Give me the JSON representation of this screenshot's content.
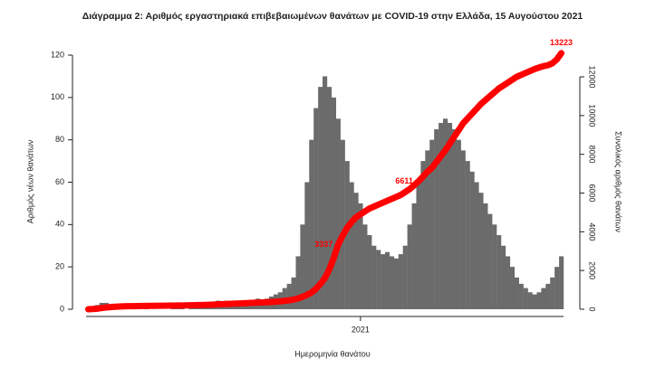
{
  "chart_data": {
    "type": "bar",
    "title": "Διάγραμμα 2: Αριθμός εργαστηριακά επιβεβαιωμένων θανάτων με COVID-19 στην Ελλάδα, 15 Αυγούστου 2021",
    "x_label": "Ημερομηνία θανάτου",
    "y_label": "Αριθμός νέων θανάτων",
    "y2_label": "Συνολικός αριθμός θανάτων",
    "categories": [
      null,
      null,
      null,
      null,
      null,
      null,
      null,
      null,
      null,
      null,
      null,
      null,
      null,
      null,
      null,
      null,
      null,
      null,
      null,
      null,
      null,
      null,
      null,
      null,
      null,
      null,
      null,
      null,
      null,
      null,
      null,
      null,
      null,
      null,
      null,
      null,
      null,
      null,
      null,
      null,
      null,
      null,
      null,
      null,
      null,
      null,
      null,
      null,
      null,
      null,
      null,
      null,
      null,
      null,
      null,
      null,
      null,
      null,
      null,
      null,
      null,
      "2021",
      null,
      null,
      null,
      null,
      null,
      null,
      null,
      null,
      null,
      null,
      null,
      null,
      null,
      null,
      null,
      null,
      null,
      null,
      null,
      null,
      null,
      null,
      null,
      null,
      null,
      null,
      null,
      null,
      null,
      null,
      null,
      null,
      null,
      null,
      null,
      null,
      null,
      null,
      null,
      null,
      null,
      null,
      null,
      null,
      null
    ],
    "series": [
      {
        "type": "bar",
        "color": "#6b6b6b",
        "values": [
          0,
          1,
          2,
          3,
          3,
          2,
          2,
          1,
          1,
          1,
          1,
          1,
          0,
          1,
          0,
          0,
          0,
          0,
          0,
          1,
          1,
          1,
          0,
          1,
          1,
          2,
          3,
          2,
          3,
          4,
          3,
          4,
          3,
          2,
          3,
          3,
          4,
          3,
          5,
          4,
          5,
          6,
          7,
          8,
          10,
          12,
          15,
          25,
          40,
          60,
          80,
          95,
          105,
          110,
          105,
          100,
          90,
          80,
          70,
          60,
          55,
          50,
          40,
          35,
          30,
          28,
          26,
          27,
          25,
          24,
          26,
          30,
          40,
          50,
          60,
          70,
          75,
          80,
          85,
          88,
          90,
          88,
          85,
          80,
          75,
          70,
          65,
          60,
          55,
          50,
          45,
          40,
          35,
          30,
          25,
          20,
          15,
          12,
          10,
          8,
          7,
          8,
          10,
          12,
          15,
          20,
          25
        ]
      },
      {
        "type": "line",
        "axis": "y2",
        "color": "#ff0000",
        "values": [
          0,
          10,
          30,
          60,
          90,
          110,
          130,
          140,
          150,
          155,
          160,
          165,
          170,
          172,
          175,
          178,
          180,
          182,
          185,
          188,
          190,
          195,
          200,
          205,
          210,
          215,
          220,
          230,
          240,
          250,
          260,
          270,
          280,
          290,
          300,
          310,
          320,
          330,
          340,
          350,
          360,
          375,
          390,
          410,
          430,
          460,
          500,
          560,
          640,
          740,
          860,
          1050,
          1300,
          1600,
          2050,
          2650,
          3337,
          3800,
          4200,
          4500,
          4750,
          4900,
          5050,
          5200,
          5300,
          5400,
          5500,
          5600,
          5700,
          5800,
          5900,
          6050,
          6200,
          6400,
          6611,
          6850,
          7100,
          7300,
          7600,
          7900,
          8200,
          8550,
          8900,
          9250,
          9600,
          9850,
          10100,
          10350,
          10600,
          10800,
          11000,
          11200,
          11400,
          11550,
          11700,
          11850,
          12000,
          12100,
          12200,
          12300,
          12400,
          12480,
          12550,
          12600,
          12700,
          12900,
          13223
        ],
        "value_labels": [
          null,
          null,
          null,
          null,
          null,
          null,
          null,
          null,
          null,
          null,
          null,
          null,
          null,
          null,
          null,
          null,
          null,
          null,
          null,
          null,
          null,
          null,
          null,
          null,
          null,
          null,
          null,
          null,
          null,
          null,
          null,
          null,
          null,
          null,
          null,
          null,
          null,
          null,
          null,
          null,
          null,
          null,
          null,
          null,
          null,
          null,
          null,
          null,
          null,
          null,
          null,
          null,
          null,
          null,
          null,
          null,
          "3337",
          null,
          null,
          null,
          null,
          null,
          null,
          null,
          null,
          null,
          null,
          null,
          null,
          null,
          null,
          null,
          null,
          null,
          "6611",
          null,
          null,
          null,
          null,
          null,
          null,
          null,
          null,
          null,
          null,
          null,
          null,
          null,
          null,
          null,
          null,
          null,
          null,
          null,
          null,
          null,
          null,
          null,
          null,
          null,
          null,
          null,
          null,
          null,
          null,
          null,
          "13223"
        ]
      }
    ],
    "ylim": [
      0,
      120
    ],
    "yticks": [
      0,
      20,
      40,
      60,
      80,
      100,
      120
    ],
    "y2lim": [
      0,
      13120
    ],
    "y2ticks": [
      0,
      2000,
      4000,
      6000,
      8000,
      10000,
      12000
    ]
  }
}
